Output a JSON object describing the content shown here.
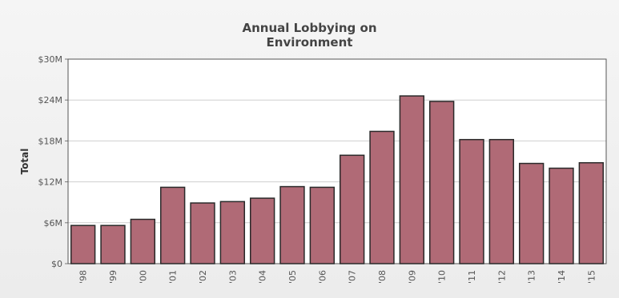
{
  "chart_data": {
    "type": "bar",
    "title_lines": [
      "Annual Lobbying on",
      "Environment"
    ],
    "xlabel": "",
    "ylabel": "Total",
    "categories": [
      "'98",
      "'99",
      "'00",
      "'01",
      "'02",
      "'03",
      "'04",
      "'05",
      "'06",
      "'07",
      "'08",
      "'09",
      "'10",
      "'11",
      "'12",
      "'13",
      "'14",
      "'15"
    ],
    "values": [
      5.6,
      5.6,
      6.5,
      11.2,
      8.9,
      9.1,
      9.6,
      11.3,
      11.2,
      15.9,
      19.4,
      24.6,
      23.8,
      18.2,
      18.2,
      14.7,
      14.0,
      14.8
    ],
    "value_unit": "millions of dollars",
    "yticks": [
      {
        "value": 0,
        "label": "$0"
      },
      {
        "value": 6,
        "label": "$6M"
      },
      {
        "value": 12,
        "label": "$12M"
      },
      {
        "value": 18,
        "label": "$18M"
      },
      {
        "value": 24,
        "label": "$24M"
      },
      {
        "value": 30,
        "label": "$30M"
      }
    ],
    "ylim": [
      0,
      30
    ],
    "grid": true,
    "legend": "none",
    "bar_color": "#b06a76",
    "bar_stroke": "#2a2a2a"
  }
}
